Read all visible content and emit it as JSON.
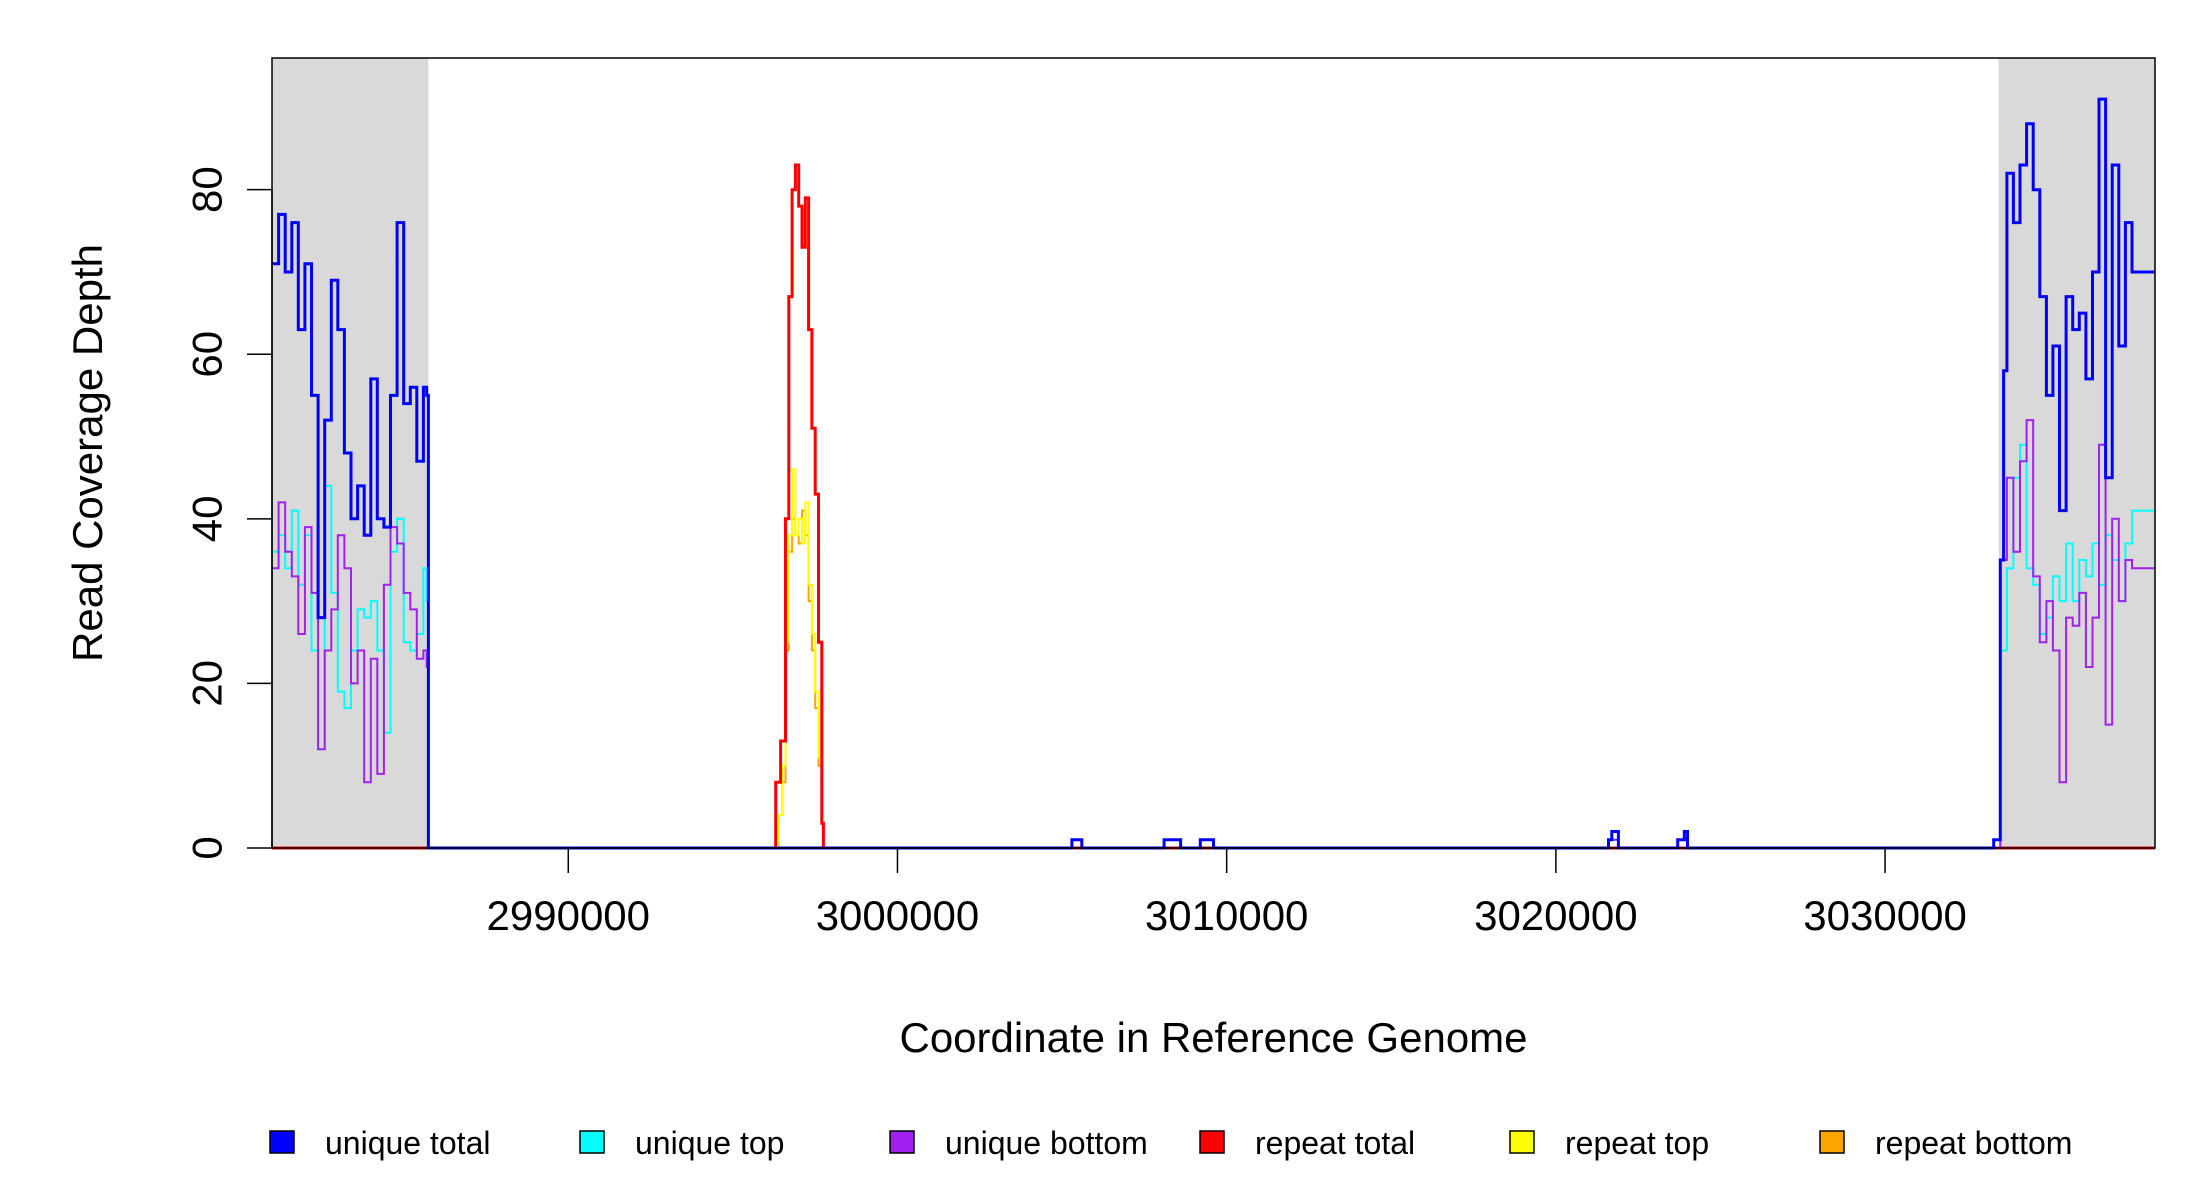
{
  "chart_data": {
    "type": "line",
    "title": "",
    "xlabel": "Coordinate in Reference Genome",
    "ylabel": "Read Coverage Depth",
    "xlim": [
      2981000,
      3038200
    ],
    "ylim": [
      0,
      96
    ],
    "x_ticks": [
      2990000,
      3000000,
      3010000,
      3020000,
      3030000
    ],
    "x_tick_labels": [
      "2990000",
      "3000000",
      "3010000",
      "3020000",
      "3030000"
    ],
    "y_ticks": [
      0,
      20,
      40,
      60,
      80
    ],
    "y_tick_labels": [
      "0",
      "20",
      "40",
      "60",
      "80"
    ],
    "shaded_regions": [
      [
        2981000,
        2985750
      ],
      [
        3033450,
        3038200
      ]
    ],
    "shade_color": "#d9d9d9",
    "legend_position": "bottom",
    "series": [
      {
        "name": "unique total",
        "color": "#0000ff",
        "points": [
          [
            2981000,
            71
          ],
          [
            2981200,
            77
          ],
          [
            2981400,
            70
          ],
          [
            2981600,
            76
          ],
          [
            2981800,
            63
          ],
          [
            2982000,
            71
          ],
          [
            2982200,
            55
          ],
          [
            2982400,
            28
          ],
          [
            2982600,
            52
          ],
          [
            2982800,
            69
          ],
          [
            2983000,
            63
          ],
          [
            2983200,
            48
          ],
          [
            2983400,
            40
          ],
          [
            2983600,
            44
          ],
          [
            2983800,
            38
          ],
          [
            2984000,
            57
          ],
          [
            2984200,
            40
          ],
          [
            2984400,
            39
          ],
          [
            2984600,
            55
          ],
          [
            2984800,
            76
          ],
          [
            2985000,
            54
          ],
          [
            2985200,
            56
          ],
          [
            2985400,
            47
          ],
          [
            2985600,
            56
          ],
          [
            2985700,
            55
          ],
          [
            2985750,
            0
          ],
          [
            2996500,
            0
          ],
          [
            3005300,
            0
          ],
          [
            3005300,
            1
          ],
          [
            3005600,
            1
          ],
          [
            3005600,
            0
          ],
          [
            3008100,
            0
          ],
          [
            3008100,
            1
          ],
          [
            3008600,
            1
          ],
          [
            3008600,
            0
          ],
          [
            3009200,
            0
          ],
          [
            3009200,
            1
          ],
          [
            3009600,
            1
          ],
          [
            3009600,
            0
          ],
          [
            3021600,
            0
          ],
          [
            3021600,
            1
          ],
          [
            3021700,
            2
          ],
          [
            3021900,
            1
          ],
          [
            3021900,
            0
          ],
          [
            3023700,
            0
          ],
          [
            3023700,
            1
          ],
          [
            3023900,
            2
          ],
          [
            3024000,
            1
          ],
          [
            3024000,
            0
          ],
          [
            3033300,
            0
          ],
          [
            3033300,
            1
          ],
          [
            3033450,
            1
          ],
          [
            3033500,
            35
          ],
          [
            3033600,
            58
          ],
          [
            3033700,
            82
          ],
          [
            3033900,
            76
          ],
          [
            3034100,
            83
          ],
          [
            3034300,
            88
          ],
          [
            3034500,
            80
          ],
          [
            3034700,
            67
          ],
          [
            3034900,
            55
          ],
          [
            3035100,
            61
          ],
          [
            3035300,
            41
          ],
          [
            3035500,
            67
          ],
          [
            3035700,
            63
          ],
          [
            3035900,
            65
          ],
          [
            3036100,
            57
          ],
          [
            3036300,
            70
          ],
          [
            3036500,
            91
          ],
          [
            3036700,
            45
          ],
          [
            3036900,
            83
          ],
          [
            3037100,
            61
          ],
          [
            3037300,
            76
          ],
          [
            3037500,
            70
          ],
          [
            3038200,
            70
          ]
        ]
      },
      {
        "name": "unique top",
        "color": "#00ffff",
        "points": [
          [
            2981000,
            36
          ],
          [
            2981200,
            38
          ],
          [
            2981400,
            34
          ],
          [
            2981600,
            41
          ],
          [
            2981800,
            32
          ],
          [
            2982000,
            38
          ],
          [
            2982200,
            24
          ],
          [
            2982400,
            12
          ],
          [
            2982600,
            44
          ],
          [
            2982800,
            31
          ],
          [
            2983000,
            19
          ],
          [
            2983200,
            17
          ],
          [
            2983400,
            24
          ],
          [
            2983600,
            29
          ],
          [
            2983800,
            28
          ],
          [
            2984000,
            30
          ],
          [
            2984200,
            24
          ],
          [
            2984400,
            14
          ],
          [
            2984600,
            36
          ],
          [
            2984800,
            40
          ],
          [
            2985000,
            25
          ],
          [
            2985200,
            24
          ],
          [
            2985400,
            26
          ],
          [
            2985600,
            34
          ],
          [
            2985700,
            30
          ],
          [
            2985750,
            0
          ],
          [
            2996500,
            0
          ],
          [
            3005300,
            0
          ],
          [
            3005300,
            1
          ],
          [
            3005600,
            1
          ],
          [
            3005600,
            0
          ],
          [
            3008100,
            0
          ],
          [
            3008100,
            1
          ],
          [
            3008600,
            1
          ],
          [
            3008600,
            0
          ],
          [
            3009200,
            0
          ],
          [
            3009200,
            1
          ],
          [
            3009600,
            1
          ],
          [
            3009600,
            0
          ],
          [
            3021600,
            0
          ],
          [
            3021600,
            1
          ],
          [
            3021900,
            1
          ],
          [
            3021900,
            0
          ],
          [
            3023700,
            0
          ],
          [
            3023700,
            1
          ],
          [
            3024000,
            1
          ],
          [
            3024000,
            0
          ],
          [
            3033300,
            0
          ],
          [
            3033450,
            0
          ],
          [
            3033500,
            24
          ],
          [
            3033700,
            34
          ],
          [
            3033900,
            45
          ],
          [
            3034100,
            49
          ],
          [
            3034300,
            34
          ],
          [
            3034500,
            32
          ],
          [
            3034700,
            26
          ],
          [
            3034900,
            28
          ],
          [
            3035100,
            33
          ],
          [
            3035300,
            30
          ],
          [
            3035500,
            37
          ],
          [
            3035700,
            30
          ],
          [
            3035900,
            35
          ],
          [
            3036100,
            33
          ],
          [
            3036300,
            37
          ],
          [
            3036500,
            32
          ],
          [
            3036700,
            38
          ],
          [
            3036900,
            35
          ],
          [
            3037100,
            30
          ],
          [
            3037300,
            37
          ],
          [
            3037500,
            41
          ],
          [
            3038200,
            41
          ]
        ]
      },
      {
        "name": "unique bottom",
        "color": "#a020f0",
        "points": [
          [
            2981000,
            34
          ],
          [
            2981200,
            42
          ],
          [
            2981400,
            36
          ],
          [
            2981600,
            33
          ],
          [
            2981800,
            26
          ],
          [
            2982000,
            39
          ],
          [
            2982200,
            31
          ],
          [
            2982400,
            12
          ],
          [
            2982600,
            24
          ],
          [
            2982800,
            29
          ],
          [
            2983000,
            38
          ],
          [
            2983200,
            34
          ],
          [
            2983400,
            20
          ],
          [
            2983600,
            24
          ],
          [
            2983800,
            8
          ],
          [
            2984000,
            23
          ],
          [
            2984200,
            9
          ],
          [
            2984400,
            32
          ],
          [
            2984600,
            39
          ],
          [
            2984800,
            37
          ],
          [
            2985000,
            31
          ],
          [
            2985200,
            29
          ],
          [
            2985400,
            23
          ],
          [
            2985600,
            24
          ],
          [
            2985700,
            22
          ],
          [
            2985750,
            0
          ],
          [
            2996500,
            0
          ],
          [
            3005300,
            0
          ],
          [
            3005300,
            1
          ],
          [
            3005600,
            1
          ],
          [
            3005600,
            0
          ],
          [
            3008100,
            0
          ],
          [
            3008100,
            1
          ],
          [
            3008600,
            1
          ],
          [
            3008600,
            0
          ],
          [
            3009200,
            0
          ],
          [
            3009200,
            1
          ],
          [
            3009600,
            1
          ],
          [
            3009600,
            0
          ],
          [
            3021600,
            0
          ],
          [
            3021600,
            1
          ],
          [
            3021900,
            1
          ],
          [
            3021900,
            0
          ],
          [
            3023700,
            0
          ],
          [
            3023700,
            1
          ],
          [
            3024000,
            1
          ],
          [
            3024000,
            0
          ],
          [
            3033300,
            0
          ],
          [
            3033450,
            0
          ],
          [
            3033500,
            35
          ],
          [
            3033700,
            45
          ],
          [
            3033900,
            36
          ],
          [
            3034100,
            47
          ],
          [
            3034300,
            52
          ],
          [
            3034500,
            33
          ],
          [
            3034700,
            25
          ],
          [
            3034900,
            30
          ],
          [
            3035100,
            24
          ],
          [
            3035300,
            8
          ],
          [
            3035500,
            28
          ],
          [
            3035700,
            27
          ],
          [
            3035900,
            31
          ],
          [
            3036100,
            22
          ],
          [
            3036300,
            28
          ],
          [
            3036500,
            49
          ],
          [
            3036700,
            15
          ],
          [
            3036900,
            40
          ],
          [
            3037100,
            30
          ],
          [
            3037300,
            35
          ],
          [
            3037500,
            34
          ],
          [
            3038200,
            34
          ]
        ]
      },
      {
        "name": "repeat total",
        "color": "#ff0000",
        "points": [
          [
            2981000,
            0
          ],
          [
            2996300,
            0
          ],
          [
            2996300,
            8
          ],
          [
            2996450,
            13
          ],
          [
            2996600,
            40
          ],
          [
            2996700,
            67
          ],
          [
            2996800,
            80
          ],
          [
            2996900,
            83
          ],
          [
            2997000,
            78
          ],
          [
            2997100,
            73
          ],
          [
            2997200,
            79
          ],
          [
            2997300,
            63
          ],
          [
            2997400,
            51
          ],
          [
            2997500,
            43
          ],
          [
            2997600,
            25
          ],
          [
            2997700,
            3
          ],
          [
            2997750,
            0
          ],
          [
            3038200,
            0
          ]
        ]
      },
      {
        "name": "repeat top",
        "color": "#ffff00",
        "points": [
          [
            2981000,
            0
          ],
          [
            2996300,
            0
          ],
          [
            2996400,
            4
          ],
          [
            2996500,
            10
          ],
          [
            2996600,
            25
          ],
          [
            2996700,
            38
          ],
          [
            2996800,
            46
          ],
          [
            2996900,
            38
          ],
          [
            2997000,
            40
          ],
          [
            2997100,
            37
          ],
          [
            2997200,
            42
          ],
          [
            2997300,
            32
          ],
          [
            2997400,
            26
          ],
          [
            2997500,
            19
          ],
          [
            2997600,
            11
          ],
          [
            2997700,
            3
          ],
          [
            2997750,
            0
          ],
          [
            3038200,
            0
          ]
        ]
      },
      {
        "name": "repeat bottom",
        "color": "#ffa500",
        "points": [
          [
            2981000,
            0
          ],
          [
            2996300,
            0
          ],
          [
            2996400,
            4
          ],
          [
            2996500,
            8
          ],
          [
            2996600,
            24
          ],
          [
            2996700,
            36
          ],
          [
            2996800,
            40
          ],
          [
            2996900,
            38
          ],
          [
            2997000,
            37
          ],
          [
            2997100,
            41
          ],
          [
            2997200,
            38
          ],
          [
            2997300,
            30
          ],
          [
            2997400,
            24
          ],
          [
            2997500,
            17
          ],
          [
            2997600,
            10
          ],
          [
            2997700,
            3
          ],
          [
            2997750,
            0
          ],
          [
            3038200,
            0
          ]
        ]
      }
    ]
  }
}
